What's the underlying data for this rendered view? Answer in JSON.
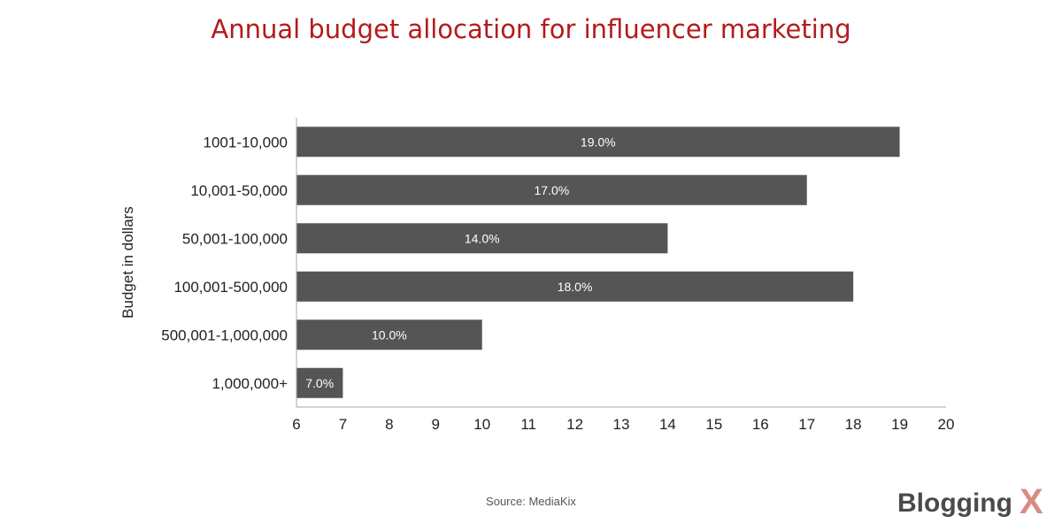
{
  "title": "Annual budget allocation for influencer marketing",
  "source": "Source: MediaKix",
  "logo": {
    "text": "Blogging",
    "mark": "X"
  },
  "colors": {
    "bar": "#555555",
    "title": "#b31b1b",
    "axis": "#aaaaaa",
    "logo_text": "#4a4a4a",
    "logo_mark": "#d98b82"
  },
  "chart_data": {
    "type": "bar",
    "orientation": "horizontal",
    "title": "Annual budget allocation for influencer marketing",
    "ylabel": "Budget in dollars",
    "xlabel": "",
    "categories": [
      "1001-10,000",
      "10,001-50,000",
      "50,001-100,000",
      "100,001-500,000",
      "500,001-1,000,000",
      "1,000,000+"
    ],
    "values": [
      19,
      17,
      14,
      18,
      10,
      7
    ],
    "data_labels": [
      "19.0%",
      "17.0%",
      "14.0%",
      "18.0%",
      "10.0%",
      "7.0%"
    ],
    "xlim": [
      6,
      20
    ],
    "xticks": [
      6,
      7,
      8,
      9,
      10,
      11,
      12,
      13,
      14,
      15,
      16,
      17,
      18,
      19,
      20
    ],
    "grid": false,
    "legend": "none"
  }
}
